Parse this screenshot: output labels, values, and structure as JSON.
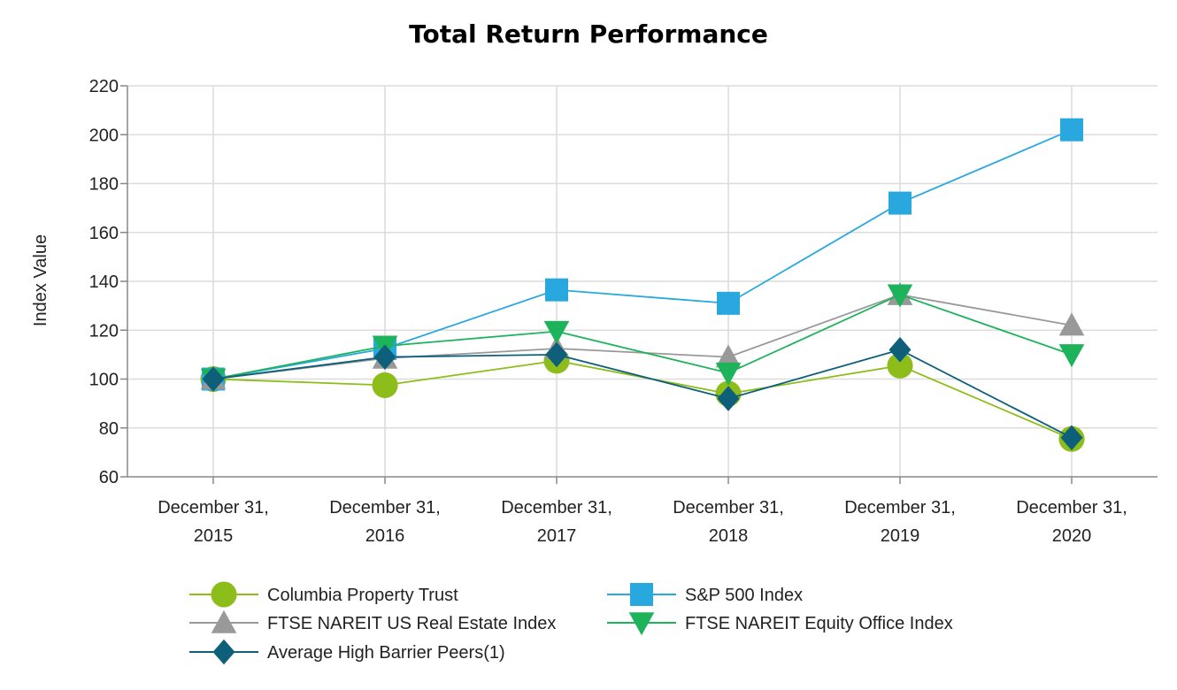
{
  "chart_data": {
    "type": "line",
    "title": "Total Return Performance",
    "xlabel": "",
    "ylabel": "Index Value",
    "ylim": [
      60,
      220
    ],
    "yticks": [
      60,
      80,
      100,
      120,
      140,
      160,
      180,
      200,
      220
    ],
    "categories": [
      [
        "December 31,",
        "2015"
      ],
      [
        "December 31,",
        "2016"
      ],
      [
        "December 31,",
        "2017"
      ],
      [
        "December 31,",
        "2018"
      ],
      [
        "December 31,",
        "2019"
      ],
      [
        "December 31,",
        "2020"
      ]
    ],
    "grid": true,
    "legend_position": "bottom",
    "series": [
      {
        "name": "Columbia Property Trust",
        "marker": "circle",
        "color": "#8cbd1a",
        "values": [
          100.0,
          97.5,
          107.5,
          94.0,
          105.5,
          75.5
        ]
      },
      {
        "name": "S&P 500 Index",
        "marker": "square",
        "color": "#29a8e0",
        "values": [
          100.0,
          112.5,
          136.5,
          131.0,
          172.0,
          202.0
        ]
      },
      {
        "name": "FTSE NAREIT US Real Estate Index",
        "marker": "triangle-up",
        "color": "#999999",
        "values": [
          100.0,
          108.5,
          112.5,
          109.0,
          134.5,
          122.0
        ]
      },
      {
        "name": "FTSE NAREIT Equity Office Index",
        "marker": "triangle-down",
        "color": "#1db35a",
        "values": [
          100.0,
          113.5,
          119.5,
          102.5,
          134.5,
          110.0
        ]
      },
      {
        "name": "Average High Barrier Peers(1)",
        "marker": "diamond",
        "color": "#0d5f7a",
        "values": [
          100.0,
          109.0,
          110.0,
          92.0,
          112.0,
          76.0
        ]
      }
    ]
  }
}
